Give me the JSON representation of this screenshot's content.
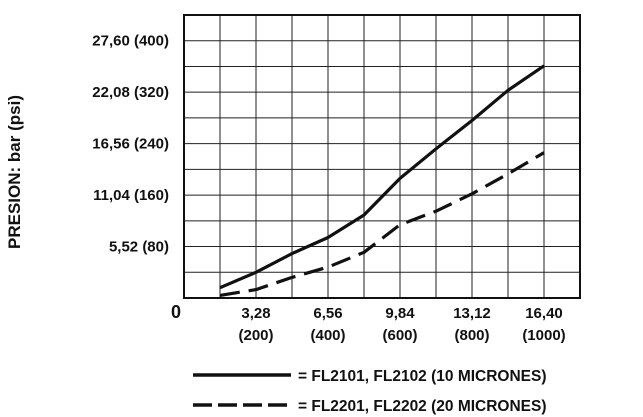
{
  "chart_data": {
    "type": "line",
    "ylabel": "PRESION: bar (psi)",
    "origin_label": "0",
    "x": [
      200,
      400,
      600,
      800,
      1000
    ],
    "x_tick_labels": [
      {
        "value": 200,
        "top": "3,28",
        "bottom": "(200)"
      },
      {
        "value": 400,
        "top": "6,56",
        "bottom": "(400)"
      },
      {
        "value": 600,
        "top": "9,84",
        "bottom": "(600)"
      },
      {
        "value": 800,
        "top": "13,12",
        "bottom": "(800)"
      },
      {
        "value": 1000,
        "top": "16,40",
        "bottom": "(1000)"
      }
    ],
    "y_tick_labels": [
      {
        "value": 80,
        "label": "5,52 (80)"
      },
      {
        "value": 160,
        "label": "11,04 (160)"
      },
      {
        "value": 240,
        "label": "16,56 (240)"
      },
      {
        "value": 320,
        "label": "22,08 (320)"
      },
      {
        "value": 400,
        "label": "27,60 (400)"
      }
    ],
    "xlim": [
      0,
      1100
    ],
    "ylim": [
      0,
      440
    ],
    "grid": true,
    "series": [
      {
        "name": "= FL2101, FL2102 (10 MICRONES)",
        "style": "solid",
        "color": "#111111",
        "points": [
          [
            100,
            16
          ],
          [
            200,
            40
          ],
          [
            300,
            69
          ],
          [
            400,
            94
          ],
          [
            500,
            129
          ],
          [
            600,
            186
          ],
          [
            700,
            232
          ],
          [
            800,
            276
          ],
          [
            900,
            323
          ],
          [
            1000,
            361
          ]
        ]
      },
      {
        "name": "= FL2201, FL2202 (20 MICRONES)",
        "style": "dashed",
        "color": "#111111",
        "points": [
          [
            100,
            4
          ],
          [
            200,
            13
          ],
          [
            300,
            32
          ],
          [
            400,
            48
          ],
          [
            500,
            71
          ],
          [
            600,
            114
          ],
          [
            700,
            135
          ],
          [
            800,
            162
          ],
          [
            900,
            193
          ],
          [
            1000,
            226
          ]
        ]
      }
    ],
    "legend_placement": "bottom"
  }
}
